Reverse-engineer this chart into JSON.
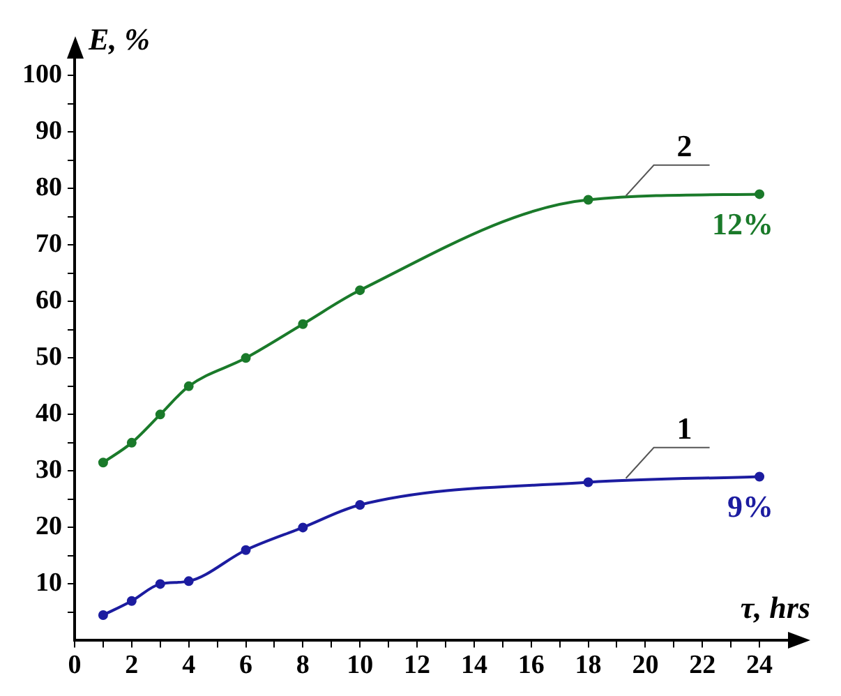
{
  "chart_data": {
    "type": "line",
    "xlabel": "τ, hrs",
    "ylabel": "E, %",
    "x": [
      1,
      2,
      3,
      4,
      6,
      8,
      10,
      18,
      24
    ],
    "series": [
      {
        "name": "1",
        "color": "#1c1ca0",
        "values": [
          4.5,
          7,
          10,
          10.5,
          16,
          20,
          24,
          28,
          29
        ]
      },
      {
        "name": "2",
        "color": "#1a7a2a",
        "values": [
          31.5,
          35,
          40,
          45,
          50,
          56,
          62,
          78,
          79
        ]
      }
    ],
    "annotations": [
      {
        "text": "9%",
        "x": 24,
        "y": 29
      },
      {
        "text": "12%",
        "x": 24,
        "y": 79
      }
    ],
    "xlim": [
      0,
      25
    ],
    "ylim": [
      0,
      103
    ],
    "xticks": [
      0,
      {
        "value": 1,
        "label": null
      },
      2,
      {
        "value": 3,
        "label": null
      },
      4,
      {
        "value": 5,
        "label": null
      },
      6,
      {
        "value": 7,
        "label": null
      },
      8,
      {
        "value": 9,
        "label": null
      },
      10,
      {
        "value": 11,
        "label": null
      },
      12,
      {
        "value": 13,
        "label": null
      },
      14,
      {
        "value": 15,
        "label": null
      },
      16,
      {
        "value": 17,
        "label": null
      },
      18,
      {
        "value": 19,
        "label": null
      },
      20,
      {
        "value": 21,
        "label": null
      },
      22,
      {
        "value": 23,
        "label": null
      },
      24
    ],
    "yticks": [
      {
        "value": 5,
        "label": null
      },
      10,
      {
        "value": 15,
        "label": null
      },
      20,
      {
        "value": 25,
        "label": null
      },
      30,
      {
        "value": 35,
        "label": null
      },
      40,
      {
        "value": 45,
        "label": null
      },
      50,
      {
        "value": 55,
        "label": null
      },
      60,
      {
        "value": 65,
        "label": null
      },
      70,
      {
        "value": 75,
        "label": null
      },
      80,
      {
        "value": 85,
        "label": null
      },
      90,
      {
        "value": 95,
        "label": null
      },
      100
    ],
    "grid": false,
    "legend": false,
    "marker": "circle",
    "line_style": "solid"
  }
}
